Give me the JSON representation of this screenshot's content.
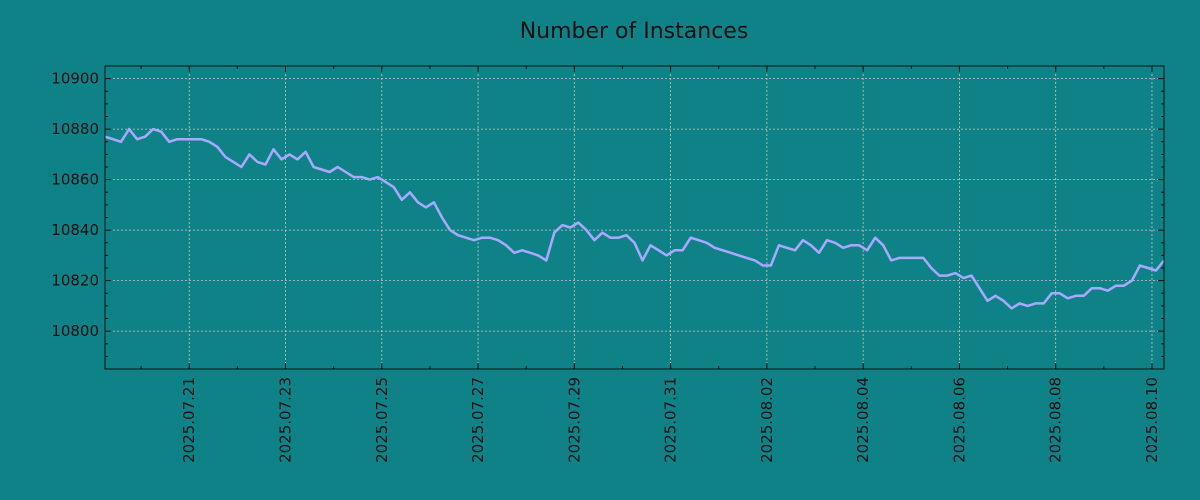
{
  "chart_data": {
    "type": "line",
    "title": "Number of Instances",
    "xlabel": "",
    "ylabel": "",
    "xlim": [
      "2025-07-19T06:00",
      "2025-08-10T06:00"
    ],
    "ylim": [
      10785,
      10905
    ],
    "yticks": [
      10800,
      10820,
      10840,
      10860,
      10880,
      10900
    ],
    "xticks": [
      "2025.07.21",
      "2025.07.23",
      "2025.07.25",
      "2025.07.27",
      "2025.07.29",
      "2025.07.31",
      "2025.08.02",
      "2025.08.04",
      "2025.08.06",
      "2025.08.08",
      "2025.08.10"
    ],
    "grid": true,
    "line_color": "#a9aaff",
    "series": [
      {
        "x": [
          "2025-07-19T06:00",
          "2025-07-19T10:00",
          "2025-07-19T14:00",
          "2025-07-19T18:00",
          "2025-07-19T22:00",
          "2025-07-20T02:00",
          "2025-07-20T06:00",
          "2025-07-20T10:00",
          "2025-07-20T14:00",
          "2025-07-20T18:00",
          "2025-07-20T22:00",
          "2025-07-21T02:00",
          "2025-07-21T06:00",
          "2025-07-21T10:00",
          "2025-07-21T14:00",
          "2025-07-21T18:00",
          "2025-07-21T22:00",
          "2025-07-22T02:00",
          "2025-07-22T06:00",
          "2025-07-22T10:00",
          "2025-07-22T14:00",
          "2025-07-22T18:00",
          "2025-07-22T22:00",
          "2025-07-23T02:00",
          "2025-07-23T06:00",
          "2025-07-23T10:00",
          "2025-07-23T14:00",
          "2025-07-23T18:00",
          "2025-07-23T22:00",
          "2025-07-24T02:00",
          "2025-07-24T06:00",
          "2025-07-24T10:00",
          "2025-07-24T14:00",
          "2025-07-24T18:00",
          "2025-07-24T22:00",
          "2025-07-25T02:00",
          "2025-07-25T06:00",
          "2025-07-25T10:00",
          "2025-07-25T14:00",
          "2025-07-25T18:00",
          "2025-07-25T22:00",
          "2025-07-26T02:00",
          "2025-07-26T06:00",
          "2025-07-26T10:00",
          "2025-07-26T14:00",
          "2025-07-26T18:00",
          "2025-07-26T22:00",
          "2025-07-27T02:00",
          "2025-07-27T06:00",
          "2025-07-27T10:00",
          "2025-07-27T14:00",
          "2025-07-27T18:00",
          "2025-07-27T22:00",
          "2025-07-28T02:00",
          "2025-07-28T06:00",
          "2025-07-28T10:00",
          "2025-07-28T14:00",
          "2025-07-28T18:00",
          "2025-07-28T22:00",
          "2025-07-29T02:00",
          "2025-07-29T06:00",
          "2025-07-29T10:00",
          "2025-07-29T14:00",
          "2025-07-29T18:00",
          "2025-07-29T22:00",
          "2025-07-30T02:00",
          "2025-07-30T06:00",
          "2025-07-30T10:00",
          "2025-07-30T14:00",
          "2025-07-30T18:00",
          "2025-07-30T22:00",
          "2025-07-31T02:00",
          "2025-07-31T06:00",
          "2025-07-31T10:00",
          "2025-07-31T14:00",
          "2025-07-31T18:00",
          "2025-07-31T22:00",
          "2025-08-01T02:00",
          "2025-08-01T06:00",
          "2025-08-01T10:00",
          "2025-08-01T14:00",
          "2025-08-01T18:00",
          "2025-08-01T22:00",
          "2025-08-02T02:00",
          "2025-08-02T06:00",
          "2025-08-02T10:00",
          "2025-08-02T14:00",
          "2025-08-02T18:00",
          "2025-08-02T22:00",
          "2025-08-03T02:00",
          "2025-08-03T06:00",
          "2025-08-03T10:00",
          "2025-08-03T14:00",
          "2025-08-03T18:00",
          "2025-08-03T22:00",
          "2025-08-04T02:00",
          "2025-08-04T06:00",
          "2025-08-04T10:00",
          "2025-08-04T14:00",
          "2025-08-04T18:00",
          "2025-08-04T22:00",
          "2025-08-05T02:00",
          "2025-08-05T06:00",
          "2025-08-05T10:00",
          "2025-08-05T14:00",
          "2025-08-05T18:00",
          "2025-08-05T22:00",
          "2025-08-06T02:00",
          "2025-08-06T06:00",
          "2025-08-06T10:00",
          "2025-08-06T14:00",
          "2025-08-06T18:00",
          "2025-08-06T22:00",
          "2025-08-07T02:00",
          "2025-08-07T06:00",
          "2025-08-07T10:00",
          "2025-08-07T14:00",
          "2025-08-07T18:00",
          "2025-08-07T22:00",
          "2025-08-08T02:00",
          "2025-08-08T06:00",
          "2025-08-08T10:00",
          "2025-08-08T14:00",
          "2025-08-08T18:00",
          "2025-08-08T22:00",
          "2025-08-09T02:00",
          "2025-08-09T06:00",
          "2025-08-09T10:00",
          "2025-08-09T14:00",
          "2025-08-09T18:00",
          "2025-08-09T22:00",
          "2025-08-10T02:00",
          "2025-08-10T06:00"
        ],
        "values": [
          10877,
          10876,
          10875,
          10880,
          10876,
          10877,
          10880,
          10879,
          10875,
          10876,
          10876,
          10876,
          10876,
          10875,
          10873,
          10869,
          10867,
          10865,
          10870,
          10867,
          10866,
          10872,
          10868,
          10870,
          10868,
          10871,
          10865,
          10864,
          10863,
          10865,
          10863,
          10861,
          10861,
          10860,
          10861,
          10859,
          10857,
          10852,
          10855,
          10851,
          10849,
          10851,
          10845,
          10840,
          10838,
          10837,
          10836,
          10837,
          10837,
          10836,
          10834,
          10831,
          10832,
          10831,
          10830,
          10828,
          10839,
          10842,
          10841,
          10843,
          10840,
          10836,
          10839,
          10837,
          10837,
          10838,
          10835,
          10828,
          10834,
          10832,
          10830,
          10832,
          10832,
          10837,
          10836,
          10835,
          10833,
          10832,
          10831,
          10830,
          10829,
          10828,
          10826,
          10826,
          10834,
          10833,
          10832,
          10836,
          10834,
          10831,
          10836,
          10835,
          10833,
          10834,
          10834,
          10832,
          10837,
          10834,
          10828,
          10829,
          10829,
          10829,
          10829,
          10825,
          10822,
          10822,
          10823,
          10821,
          10822,
          10817,
          10812,
          10814,
          10812,
          10809,
          10811,
          10810,
          10811,
          10811,
          10815,
          10815,
          10813,
          10814,
          10814,
          10817,
          10817,
          10816,
          10818,
          10818,
          10820,
          10826,
          10825,
          10824,
          10828
        ]
      }
    ]
  }
}
